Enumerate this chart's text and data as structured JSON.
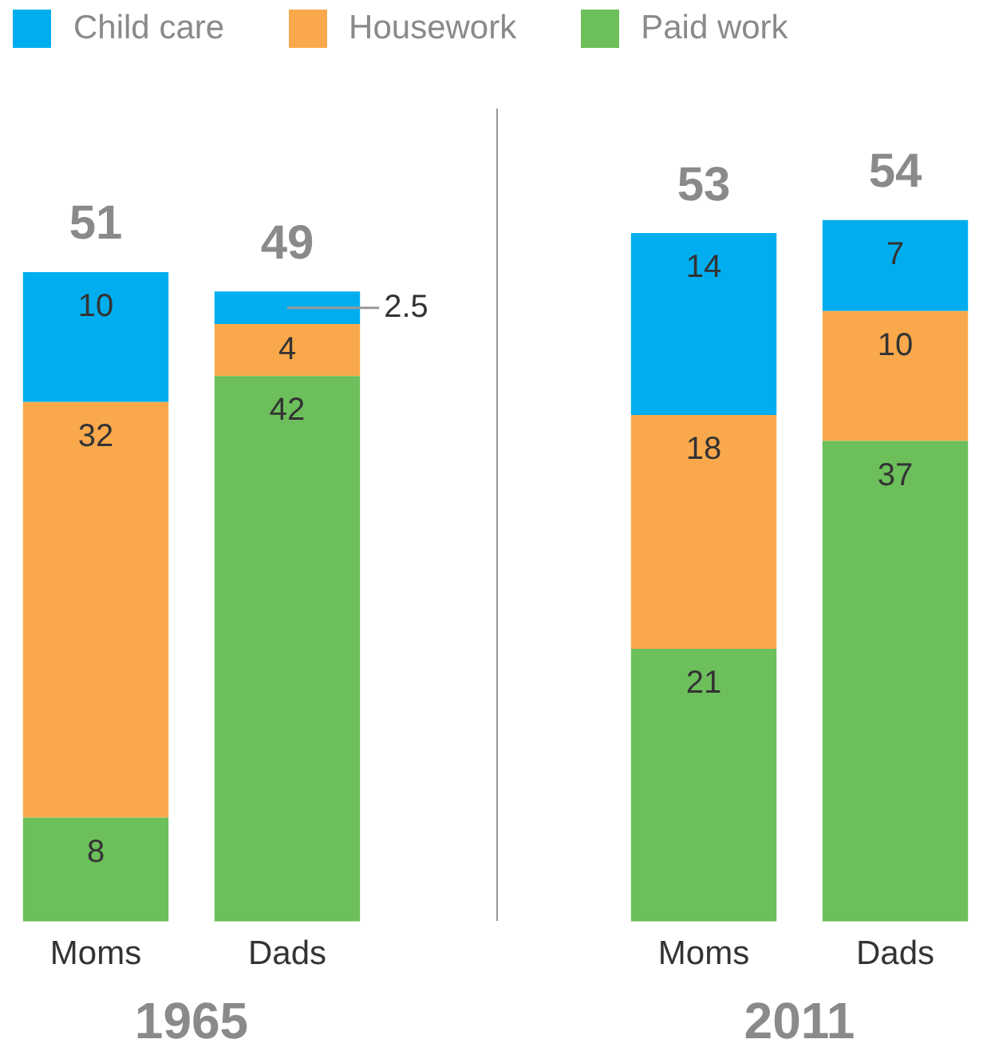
{
  "chart_data": [
    {
      "type": "bar",
      "stacked": true,
      "categories": [
        "Moms",
        "Dads"
      ],
      "xlabel": "1965",
      "series": [
        {
          "name": "Paid work",
          "color": "#6cbf5b",
          "values": [
            8,
            42
          ]
        },
        {
          "name": "Housework",
          "color": "#f9a94b",
          "values": [
            32,
            4
          ]
        },
        {
          "name": "Child care",
          "color": "#00aeef",
          "values": [
            10,
            2.5
          ]
        }
      ],
      "totals": [
        "51",
        "49"
      ],
      "data_labels": true,
      "grid": false,
      "legend": "top",
      "tick_labels": "x"
    },
    {
      "type": "bar",
      "stacked": true,
      "categories": [
        "Moms",
        "Dads"
      ],
      "xlabel": "2011",
      "series": [
        {
          "color": "#6cbf5b",
          "values": [
            21,
            37
          ]
        },
        {
          "color": "#f9a94b",
          "values": [
            18,
            10
          ]
        },
        {
          "color": "#00aeef",
          "values": [
            14,
            7
          ]
        }
      ],
      "totals": [
        "53",
        "54"
      ],
      "data_labels": true,
      "grid": false,
      "tick_labels": "x"
    }
  ]
}
